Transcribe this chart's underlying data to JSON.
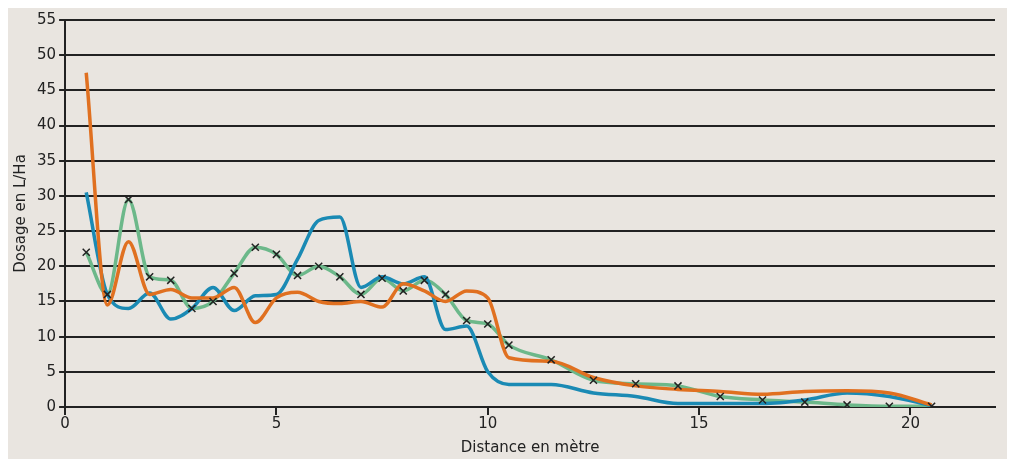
{
  "chart_data": {
    "type": "line",
    "xlabel": "Distance en mètre",
    "ylabel": "Dosage en L/Ha",
    "x": [
      0.5,
      1,
      1.5,
      2,
      2.5,
      3,
      3.5,
      4,
      4.5,
      5,
      5.5,
      6,
      6.5,
      7,
      7.5,
      8,
      8.5,
      9,
      9.5,
      10,
      10.5,
      11.5,
      12.5,
      13.5,
      14.5,
      15.5,
      16.5,
      17.5,
      18.5,
      19.5,
      20.5
    ],
    "series": [
      {
        "color": "#e07020",
        "marker": "none",
        "values": [
          47.5,
          14.5,
          23.5,
          16,
          16.7,
          15.5,
          15.5,
          17,
          12,
          15.5,
          16.3,
          15,
          14.7,
          15,
          14.2,
          17.5,
          16.5,
          15,
          16.5,
          15.5,
          7,
          6.5,
          4.2,
          3,
          2.5,
          2.2,
          1.8,
          2.2,
          2.3,
          2,
          0.3
        ]
      },
      {
        "color": "#1a8ab4",
        "marker": "none",
        "values": [
          30.5,
          16,
          14,
          16.2,
          12.5,
          14,
          17,
          13.7,
          15.8,
          16,
          21,
          26.5,
          27,
          17,
          18.5,
          17.5,
          18.5,
          11,
          11.5,
          5,
          3.2,
          3.2,
          2,
          1.5,
          0.5,
          0.5,
          0.5,
          1,
          2,
          1.5,
          0.2
        ]
      },
      {
        "color": "#6cb88a",
        "marker": "none",
        "values": [
          22,
          16,
          29.5,
          18.5,
          18,
          14,
          15,
          19,
          22.7,
          21.7,
          18.7,
          20,
          18.5,
          16,
          18.3,
          16.5,
          18,
          16,
          12.3,
          11.8,
          8.8,
          6.7,
          3.8,
          3.3,
          3,
          1.5,
          1,
          0.7,
          0.3,
          0.1,
          0.1
        ]
      },
      {
        "type": "scatter",
        "color": "#222222",
        "marker": "cross",
        "values": [
          22,
          16,
          29.5,
          18.5,
          18,
          14,
          15,
          19,
          22.7,
          21.7,
          18.7,
          20,
          18.5,
          16,
          18.3,
          16.5,
          18,
          16,
          12.3,
          11.8,
          8.8,
          6.7,
          3.8,
          3.3,
          3,
          1.5,
          1,
          0.7,
          0.3,
          0.1,
          0.1
        ]
      }
    ],
    "xlim": [
      0,
      22
    ],
    "xticks": [
      0,
      5,
      10,
      15,
      20
    ],
    "ylim": [
      0,
      55
    ],
    "yticks": [
      0,
      5,
      10,
      15,
      20,
      25,
      30,
      35,
      40,
      45,
      50,
      55
    ],
    "grid": "y",
    "legend": false
  }
}
